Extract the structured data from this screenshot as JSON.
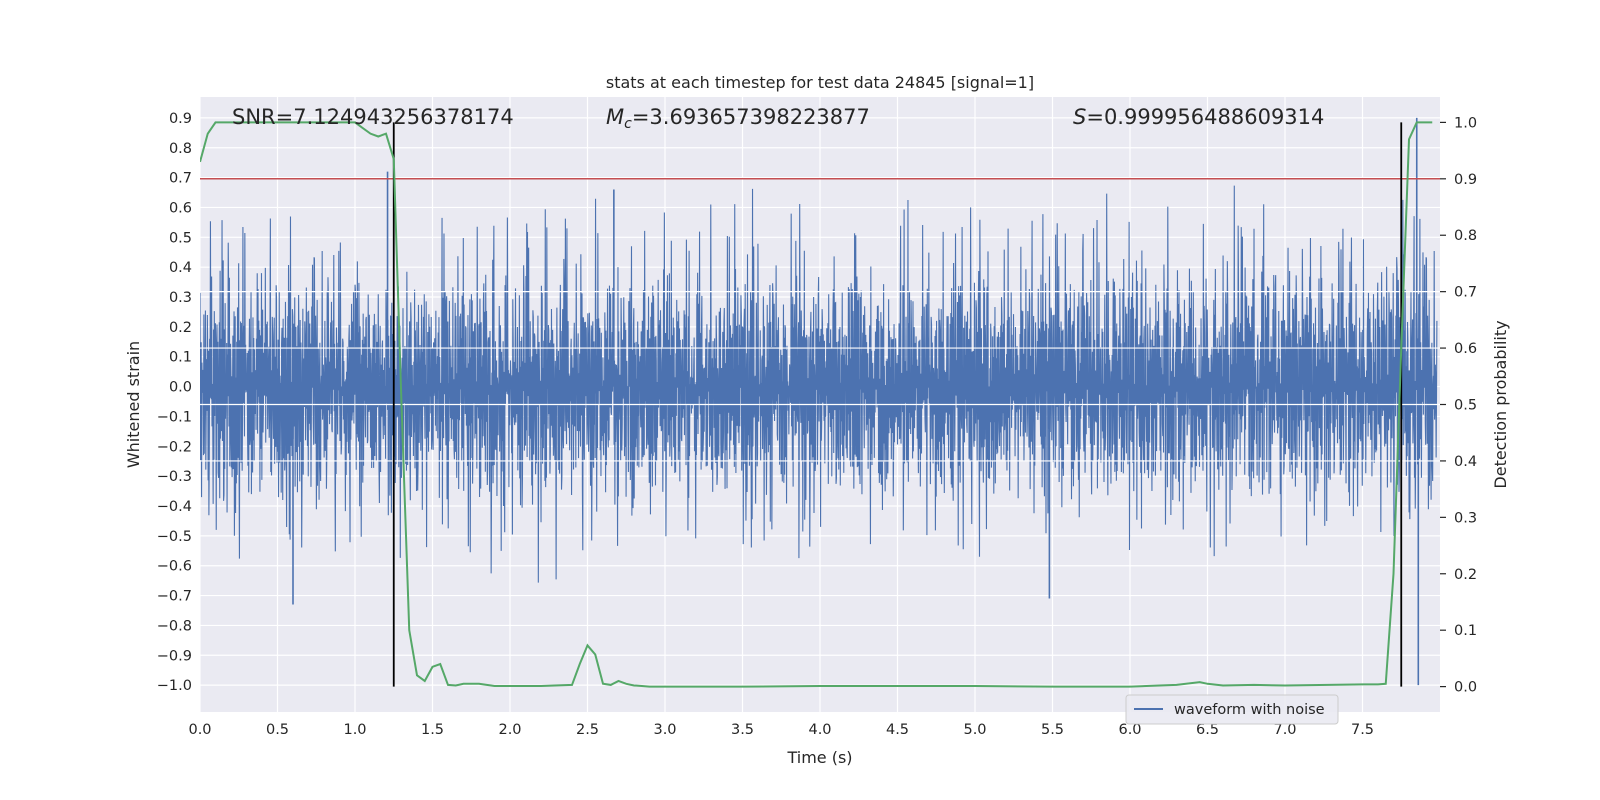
{
  "chart_data": {
    "type": "line",
    "title": "stats at each timestep for test data 24845 [signal=1]",
    "xlabel": "Time (s)",
    "ylabel": "Whitened strain",
    "y2label": "Detection probability",
    "xlim": [
      0.0,
      8.0
    ],
    "ylim": [
      -1.09,
      0.97
    ],
    "y2lim": [
      -0.045,
      1.045
    ],
    "x_ticks": [
      "0.0",
      "0.5",
      "1.0",
      "1.5",
      "2.0",
      "2.5",
      "3.0",
      "3.5",
      "4.0",
      "4.5",
      "5.0",
      "5.5",
      "6.0",
      "6.5",
      "7.0",
      "7.5"
    ],
    "y_ticks": [
      "0.9",
      "0.8",
      "0.7",
      "0.6",
      "0.5",
      "0.4",
      "0.3",
      "0.2",
      "0.1",
      "0.0",
      "-0.1",
      "-0.2",
      "-0.3",
      "-0.4",
      "-0.5",
      "-0.6",
      "-0.7",
      "-0.8",
      "-0.9",
      "-1.0"
    ],
    "y2_ticks": [
      "1.0",
      "0.9",
      "0.8",
      "0.7",
      "0.6",
      "0.5",
      "0.4",
      "0.3",
      "0.2",
      "0.1",
      "0.0"
    ],
    "grid": true,
    "legend_position": "lower-right",
    "annotations": {
      "snr": "SNR=7.124943256378174",
      "mc_symbol": "M",
      "mc_sub": "c",
      "mc_value": "=3.693657398223877",
      "s_symbol": "S",
      "s_value": "=0.999956488609314"
    },
    "threshold": {
      "value": 0.9,
      "axis": "right",
      "color": "#c44e52"
    },
    "vertical_markers": {
      "x": [
        1.25,
        7.75
      ],
      "color": "#000000"
    },
    "series": [
      {
        "name": "waveform with noise",
        "axis": "left",
        "color": "#4c72b0",
        "sampling": "dense noise trace, 0-8 s",
        "typical_envelope_upper": [
          0.28,
          0.45
        ],
        "typical_envelope_lower": [
          -0.32,
          -0.48
        ],
        "peaks": [
          {
            "x": 0.6,
            "y": -0.73
          },
          {
            "x": 1.21,
            "y": 0.72
          },
          {
            "x": 2.67,
            "y": 0.66
          },
          {
            "x": 5.48,
            "y": -0.71
          },
          {
            "x": 7.85,
            "y": 0.9
          },
          {
            "x": 7.86,
            "y": -1.0
          }
        ]
      },
      {
        "axis": "right",
        "color": "#55a868",
        "x": [
          0.0,
          0.05,
          0.1,
          0.2,
          0.5,
          0.8,
          1.0,
          1.05,
          1.1,
          1.15,
          1.2,
          1.25,
          1.3,
          1.35,
          1.4,
          1.45,
          1.5,
          1.55,
          1.6,
          1.65,
          1.7,
          1.8,
          1.9,
          2.0,
          2.2,
          2.4,
          2.45,
          2.5,
          2.55,
          2.6,
          2.65,
          2.7,
          2.75,
          2.8,
          2.85,
          2.9,
          3.0,
          3.5,
          4.0,
          4.5,
          5.0,
          5.5,
          6.0,
          6.3,
          6.45,
          6.5,
          6.6,
          6.8,
          7.0,
          7.5,
          7.6,
          7.65,
          7.7,
          7.75,
          7.8,
          7.85,
          7.9,
          7.95
        ],
        "values": [
          0.93,
          0.98,
          1.0,
          1.0,
          1.0,
          1.0,
          1.0,
          0.99,
          0.98,
          0.975,
          0.98,
          0.935,
          0.5,
          0.1,
          0.02,
          0.01,
          0.035,
          0.04,
          0.003,
          0.002,
          0.005,
          0.005,
          0.001,
          0.001,
          0.001,
          0.003,
          0.04,
          0.073,
          0.057,
          0.005,
          0.003,
          0.01,
          0.005,
          0.002,
          0.001,
          0.0,
          0.0,
          0.0,
          0.001,
          0.001,
          0.001,
          0.0,
          0.0,
          0.003,
          0.008,
          0.005,
          0.002,
          0.003,
          0.002,
          0.004,
          0.004,
          0.005,
          0.2,
          0.6,
          0.97,
          1.0,
          1.0,
          1.0
        ]
      }
    ]
  }
}
